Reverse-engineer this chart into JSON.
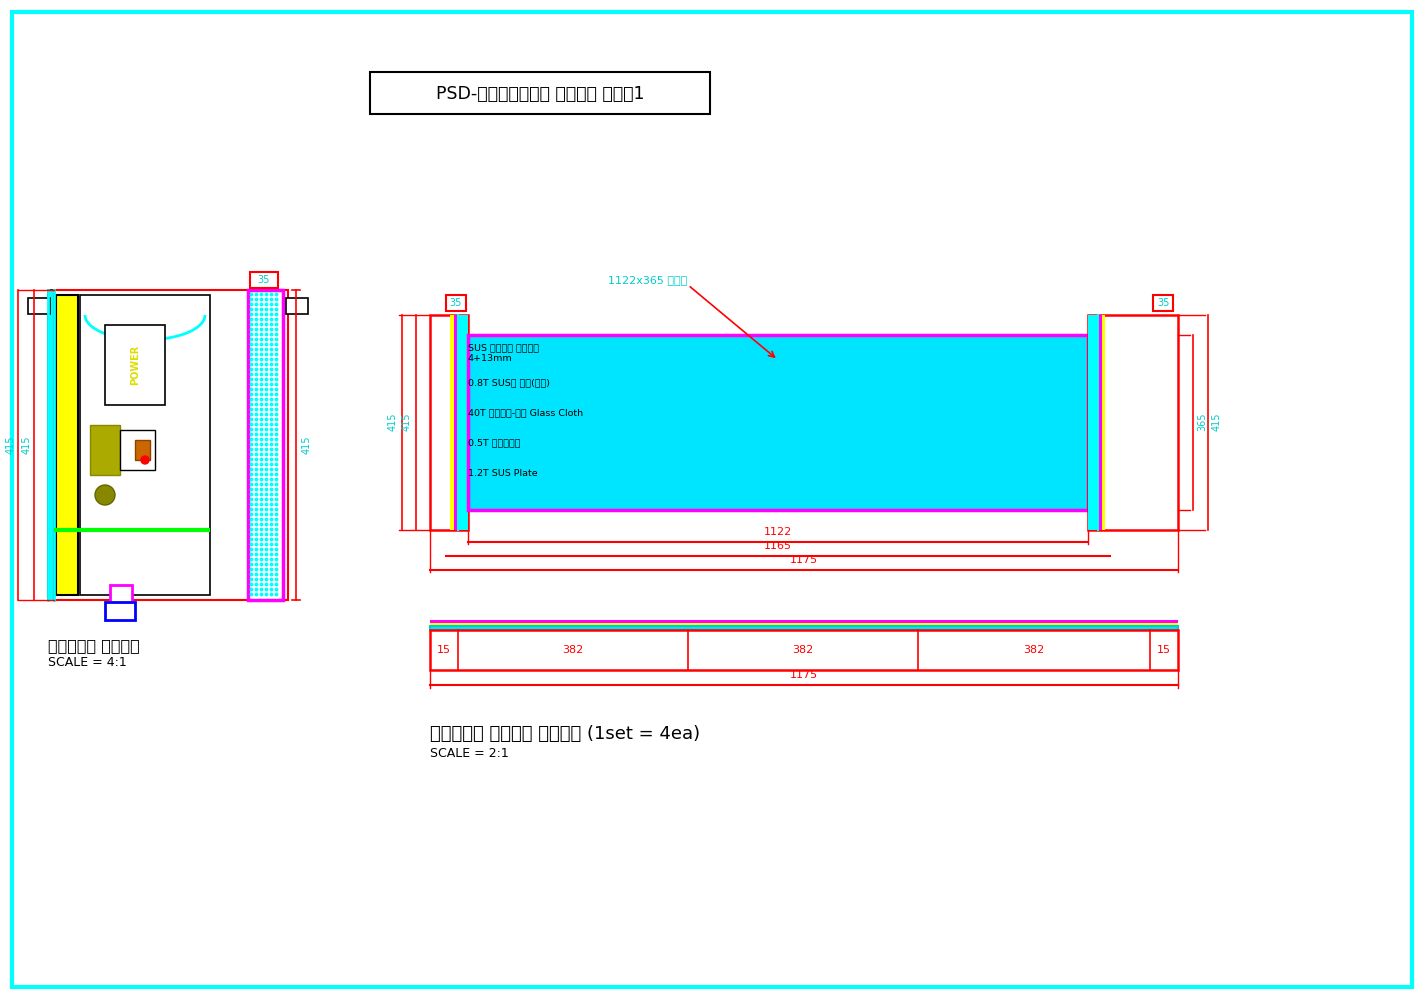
{
  "title": "PSD-재난안전승강문 흡음판넬 상세도1",
  "bg_color": "#ffffff",
  "border_color": "#00ffff",
  "left_label": "기계박스용 흡음판넬",
  "left_scale": "SCALE = 4:1",
  "right_label": "기계박스용 흡음판넬 제작상세 (1set = 4ea)",
  "right_scale": "SCALE = 2:1",
  "ann1": "SUS 동관마리 격원퍼스",
  "ann1b": "4+13mm",
  "ann2": "0.8T SUS판 금망(무빈)",
  "ann3": "40T 흡음보드-관련 Glass Cloth",
  "ann4": "0.5T 알루미늄판",
  "ann5": "1.2T SUS Plate",
  "dim_top": "1122x365 부분도",
  "dim_1122": "1122",
  "dim_1165": "1165",
  "dim_1175": "1175",
  "dim_35": "35",
  "dim_415a": "415",
  "dim_415b": "415",
  "dim_365": "365",
  "dim_415c": "415",
  "dim_382": "382",
  "dim_15": "15",
  "dim_1175b": "1175"
}
